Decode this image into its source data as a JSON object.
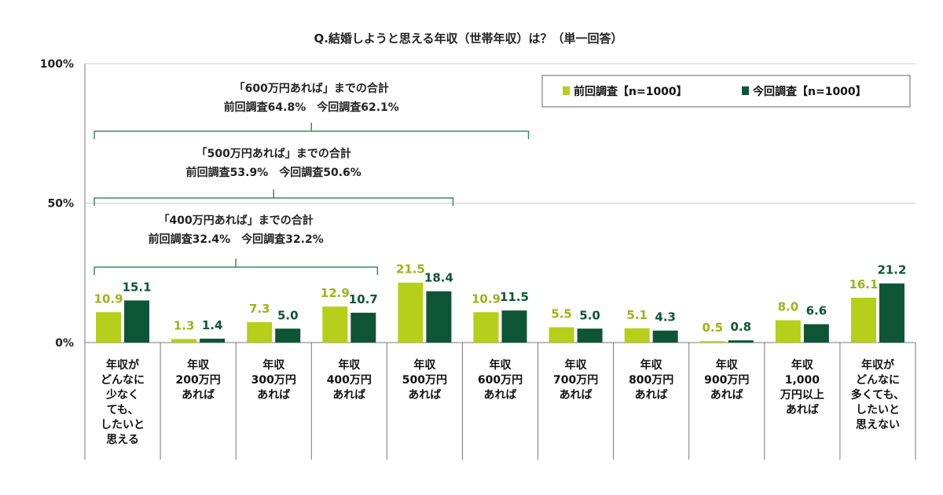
{
  "chart_data": {
    "type": "bar",
    "title": "Q.結婚しようと思える年収（世帯年収）は？（単一回答）",
    "y_ticks": [
      "0%",
      "50%",
      "100%"
    ],
    "ylim": [
      0,
      100
    ],
    "categories": [
      [
        "年収が",
        "どんなに",
        "少なく",
        "ても、",
        "したいと",
        "思える"
      ],
      [
        "年収",
        "200万円",
        "あれば"
      ],
      [
        "年収",
        "300万円",
        "あれば"
      ],
      [
        "年収",
        "400万円",
        "あれば"
      ],
      [
        "年収",
        "500万円",
        "あれば"
      ],
      [
        "年収",
        "600万円",
        "あれば"
      ],
      [
        "年収",
        "700万円",
        "あれば"
      ],
      [
        "年収",
        "800万円",
        "あれば"
      ],
      [
        "年収",
        "900万円",
        "あれば"
      ],
      [
        "年収",
        "1,000",
        "万円以上",
        "あれば"
      ],
      [
        "年収が",
        "どんなに",
        "多くても、",
        "したいと",
        "思えない"
      ]
    ],
    "series": [
      {
        "name": "前回調査【n=1000】",
        "color": "#b5cf1b",
        "values": [
          10.9,
          1.3,
          7.3,
          12.9,
          21.5,
          10.9,
          5.5,
          5.1,
          0.5,
          8.0,
          16.1
        ]
      },
      {
        "name": "今回調査【n=1000】",
        "color": "#0e5537",
        "values": [
          15.1,
          1.4,
          5.0,
          10.7,
          18.4,
          11.5,
          5.0,
          4.3,
          0.8,
          6.6,
          21.2
        ]
      }
    ],
    "value_labels": {
      "前回調査": [
        "10.9",
        "1.3",
        "7.3",
        "12.9",
        "21.5",
        "10.9",
        "5.5",
        "5.1",
        "0.5",
        "8.0",
        "16.1"
      ],
      "今回調査": [
        "15.1",
        "1.4",
        "5.0",
        "10.7",
        "18.4",
        "11.5",
        "5.0",
        "4.3",
        "0.8",
        "6.6",
        "21.2"
      ]
    },
    "label_colors": {
      "previous": "#9ab41a",
      "current": "#0e5537"
    },
    "annotations": [
      {
        "title": "「600万円あれば」までの合計",
        "detail": "前回調査64.8%　今回調査62.1%",
        "categories_covered": 6
      },
      {
        "title": "「500万円あれば」までの合計",
        "detail": "前回調査53.9%　今回調査50.6%",
        "categories_covered": 5
      },
      {
        "title": "「400万円あれば」までの合計",
        "detail": "前回調査32.4%　今回調査32.2%",
        "categories_covered": 4
      }
    ],
    "bracket_color": "#3f8a5a",
    "grid": true,
    "legend_position": "top-right"
  }
}
